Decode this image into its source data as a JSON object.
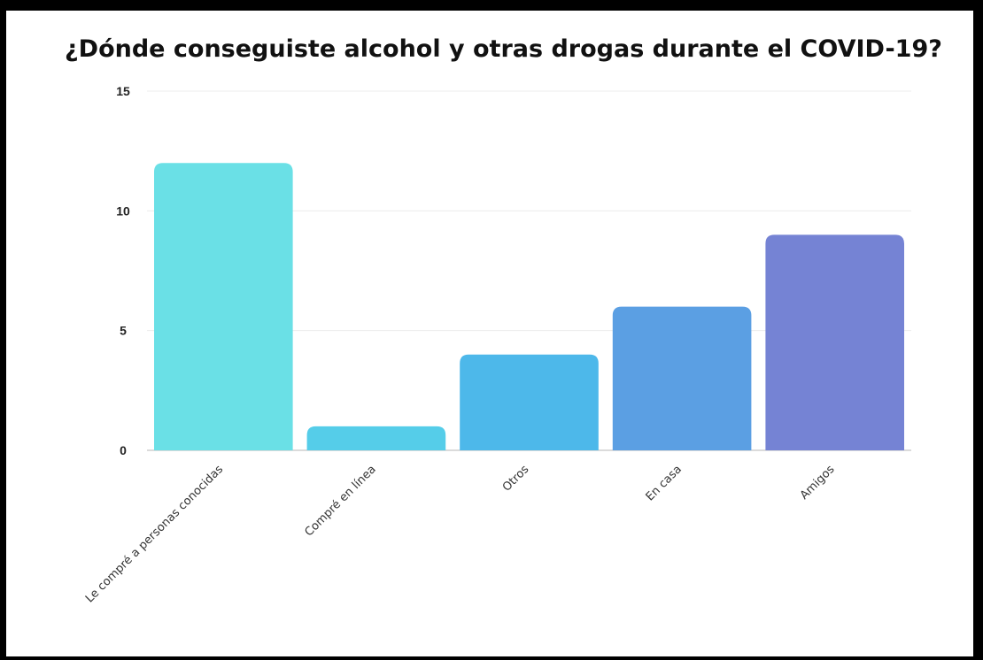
{
  "chart_data": {
    "type": "bar",
    "title": "¿Dónde conseguiste alcohol y otras drogas durante el COVID-19?",
    "xlabel": "",
    "ylabel": "",
    "categories": [
      "Le compré a personas conocidas",
      "Compré en línea",
      "Otros",
      "En casa",
      "Amigos"
    ],
    "values": [
      12,
      1,
      4,
      6,
      9
    ],
    "colors": [
      "#6ae0e6",
      "#55cde9",
      "#4db8ea",
      "#5b9fe3",
      "#7583d4"
    ],
    "ylim": [
      0,
      15
    ],
    "yticks": [
      0,
      5,
      10,
      15
    ],
    "grid": true,
    "legend": "none"
  }
}
